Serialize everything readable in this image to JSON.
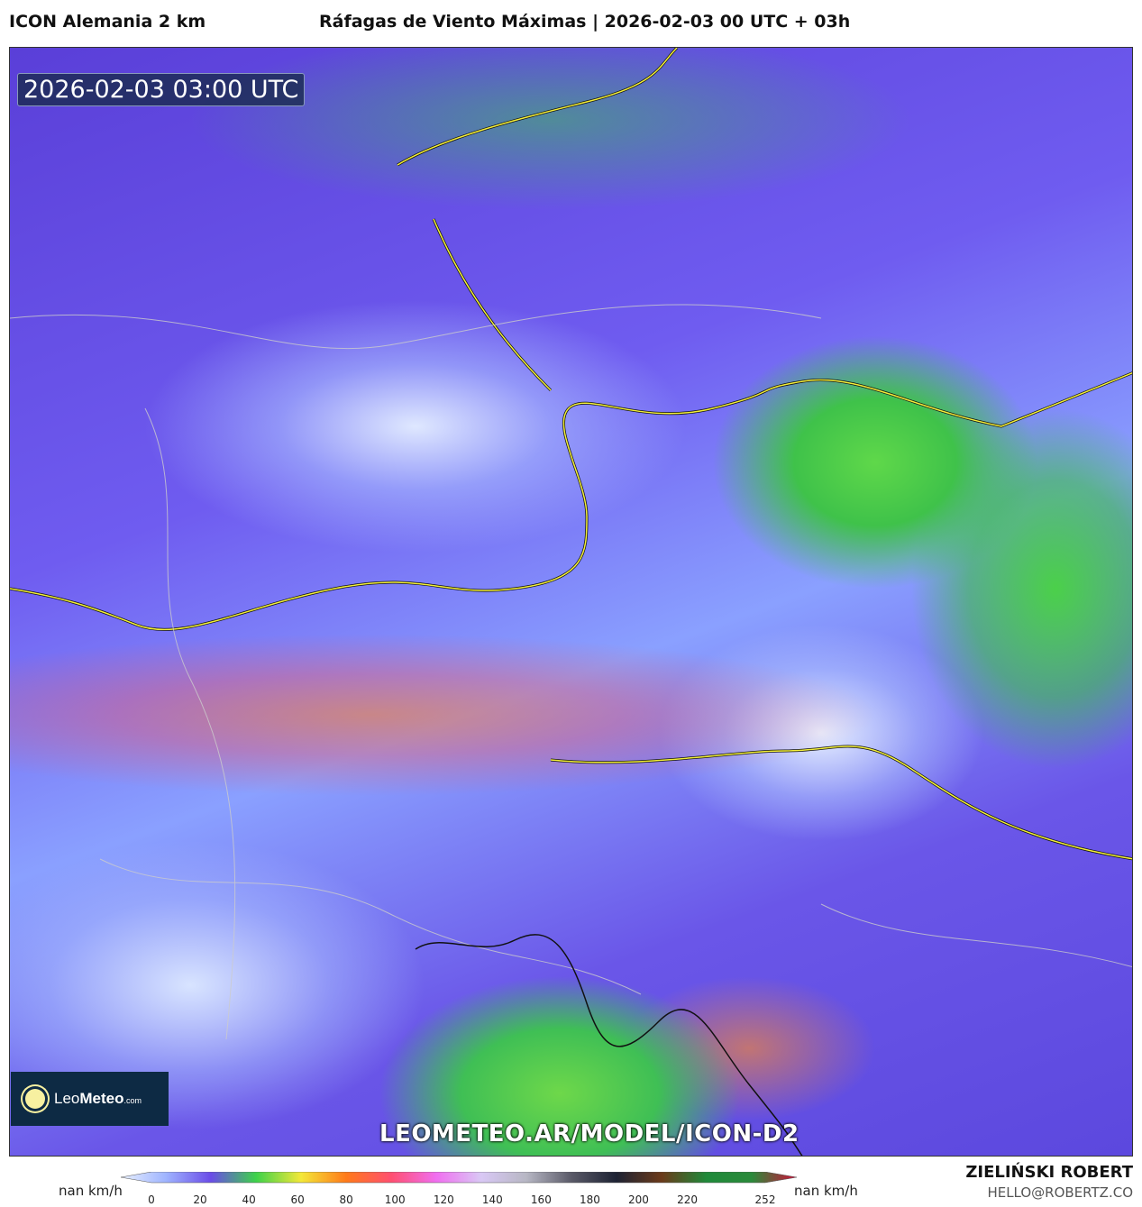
{
  "header": {
    "model": "ICON Alemania 2 km",
    "title": "Ráfagas de Viento Máximas | 2026-02-03 00 UTC + 03h"
  },
  "map": {
    "valid_time": "2026-02-03 03:00 UTC",
    "watermark": "LEOMETEO.AR/MODEL/ICON-D2",
    "logo": {
      "part1": "Leo",
      "part2": "Meteo",
      "part3": ".com"
    }
  },
  "colorbar": {
    "unit_left": "nan km/h",
    "unit_right": "nan km/h",
    "ticks": [
      "0",
      "20",
      "40",
      "60",
      "80",
      "100",
      "120",
      "140",
      "160",
      "180",
      "200",
      "220",
      "252"
    ],
    "tick_values": [
      0,
      20,
      40,
      60,
      80,
      100,
      120,
      140,
      160,
      180,
      200,
      220,
      252
    ],
    "range": [
      0,
      252
    ],
    "colors": [
      "#e8f0ff",
      "#9fb4ff",
      "#6a4ce8",
      "#3dd24a",
      "#f3e838",
      "#ff7a1a",
      "#ff4f70",
      "#f06ef0",
      "#d9c8f5",
      "#b7b7c4",
      "#5a5a68",
      "#1d2233",
      "#6b3a1a",
      "#1f8a3a",
      "#2a8a3a",
      "#d0103a"
    ]
  },
  "footer": {
    "author": "ZIELIŃSKI ROBERT",
    "email": "HELLO@ROBERTZ.CO"
  }
}
